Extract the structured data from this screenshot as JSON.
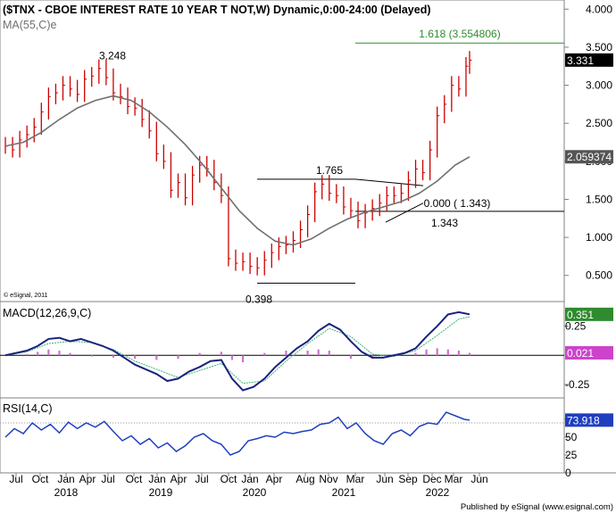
{
  "colors": {
    "price_bar": "#cc0000",
    "ma_line": "#707070",
    "fib_line": "#2e8b2e",
    "macd_line": "#1a237e",
    "signal_line": "#3cb371",
    "histogram": "#d070d0",
    "rsi_line": "#1f3fbf",
    "badge_black": "#000000",
    "badge_gray": "#555555",
    "badge_green": "#2e8b2e",
    "badge_magenta": "#cc44cc",
    "badge_blue": "#1f3fbf"
  },
  "header": {
    "title": "($TNX - CBOE INTEREST RATE 10 YEAR T NOT,W) Dynamic,0:00-24:00 (Delayed)",
    "ma_label": "MA(55,C)e"
  },
  "footer": {
    "copyright": "© eSignal, 2011",
    "published": "Published by eSignal (www.esignal.com)"
  },
  "chart_data": [
    {
      "type": "line",
      "panel": "price",
      "x_ticks": [
        "Jul",
        "Oct",
        "Jan",
        "Apr",
        "Jul",
        "Oct",
        "Jan",
        "Apr",
        "Jul",
        "Oct",
        "Jan",
        "Apr",
        "Aug",
        "Nov",
        "Mar",
        "Jun",
        "Sep",
        "Dec",
        "Mar",
        "Jun"
      ],
      "x_years": [
        "2018",
        "2019",
        "2020",
        "2021",
        "2022"
      ],
      "y_ticks": [
        "4.000",
        "3.500",
        "3.000",
        "2.500",
        "2.000",
        "1.500",
        "1.000",
        "0.500"
      ],
      "ylim": [
        0.18,
        4.05
      ],
      "series": [
        {
          "name": "$TNX",
          "style": "bars",
          "x": [
            0,
            4,
            8,
            12,
            16,
            20,
            24,
            28,
            32,
            36,
            40,
            44,
            48,
            52,
            56,
            60,
            64,
            68,
            72,
            76,
            80,
            84,
            88,
            92,
            96,
            100,
            104,
            108,
            112,
            116,
            120,
            124,
            128,
            132,
            136,
            140,
            144,
            148,
            152,
            156,
            160,
            164,
            168,
            172,
            176,
            180,
            184,
            188,
            192,
            196,
            200,
            204,
            208,
            212,
            216,
            220,
            224,
            228,
            232,
            236,
            240,
            244,
            248,
            252,
            256,
            258
          ],
          "values": [
            2.2,
            2.15,
            2.28,
            2.35,
            2.45,
            2.65,
            2.85,
            2.9,
            3.0,
            2.95,
            2.88,
            3.08,
            3.12,
            3.22,
            3.1,
            2.9,
            2.85,
            2.72,
            2.7,
            2.55,
            2.4,
            2.1,
            2.0,
            1.62,
            1.72,
            1.52,
            1.82,
            1.95,
            1.9,
            1.72,
            1.55,
            0.72,
            0.66,
            0.68,
            0.62,
            0.6,
            0.7,
            0.8,
            0.88,
            0.9,
            0.96,
            1.1,
            1.3,
            1.6,
            1.7,
            1.58,
            1.55,
            1.4,
            1.35,
            1.22,
            1.32,
            1.38,
            1.45,
            1.55,
            1.55,
            1.58,
            1.75,
            1.9,
            1.85,
            2.15,
            2.6,
            2.75,
            3.0,
            2.95,
            3.25,
            3.33
          ]
        },
        {
          "name": "MA(55,C)e",
          "style": "line",
          "x": [
            0,
            10,
            20,
            30,
            40,
            50,
            60,
            70,
            80,
            90,
            100,
            110,
            120,
            130,
            140,
            150,
            160,
            170,
            180,
            190,
            200,
            210,
            220,
            230,
            240,
            250,
            258
          ],
          "values": [
            2.2,
            2.25,
            2.38,
            2.55,
            2.7,
            2.8,
            2.86,
            2.8,
            2.65,
            2.45,
            2.22,
            1.95,
            1.65,
            1.35,
            1.12,
            0.95,
            0.9,
            0.98,
            1.12,
            1.24,
            1.33,
            1.4,
            1.47,
            1.58,
            1.74,
            1.95,
            2.06
          ]
        }
      ],
      "annotations": [
        {
          "text": "3.248",
          "x": 58,
          "y": 3.248
        },
        {
          "text": "1.765",
          "x": 180,
          "y": 1.765
        },
        {
          "text": "0.398",
          "x": 136,
          "y": 0.398
        },
        {
          "text": "1.343",
          "x": 238,
          "y": 1.343
        },
        {
          "text": "0.000 ( 1.343)",
          "x": 232,
          "y": 1.343
        },
        {
          "text": "1.618 (3.554806)",
          "x": 230,
          "y": 3.5548
        }
      ],
      "badges": {
        "last": "3.331",
        "ma": "2.059374"
      }
    },
    {
      "type": "line",
      "panel": "macd",
      "title": "MACD(12,26,9,C)",
      "y_ticks": [
        "0.25",
        "-0.25"
      ],
      "ylim": [
        -0.35,
        0.43
      ],
      "series": [
        {
          "name": "MACD",
          "x": [
            0,
            6,
            12,
            18,
            24,
            30,
            36,
            42,
            48,
            54,
            60,
            66,
            72,
            78,
            84,
            90,
            96,
            102,
            108,
            114,
            120,
            126,
            132,
            138,
            144,
            150,
            156,
            162,
            168,
            174,
            180,
            186,
            192,
            198,
            204,
            210,
            216,
            222,
            228,
            234,
            240,
            246,
            252,
            258
          ],
          "values": [
            0.0,
            0.02,
            0.04,
            0.08,
            0.14,
            0.15,
            0.12,
            0.14,
            0.11,
            0.08,
            0.04,
            -0.02,
            -0.08,
            -0.12,
            -0.16,
            -0.22,
            -0.2,
            -0.14,
            -0.1,
            -0.05,
            -0.04,
            -0.2,
            -0.3,
            -0.27,
            -0.2,
            -0.1,
            -0.02,
            0.06,
            0.12,
            0.21,
            0.27,
            0.22,
            0.12,
            0.03,
            -0.02,
            -0.02,
            0.0,
            0.02,
            0.06,
            0.16,
            0.25,
            0.35,
            0.37,
            0.351
          ]
        },
        {
          "name": "Signal",
          "x": [
            0,
            12,
            24,
            36,
            48,
            60,
            72,
            84,
            96,
            108,
            120,
            132,
            144,
            156,
            168,
            180,
            192,
            204,
            216,
            228,
            240,
            252,
            258
          ],
          "values": [
            0.0,
            0.03,
            0.1,
            0.12,
            0.11,
            0.05,
            -0.05,
            -0.12,
            -0.19,
            -0.13,
            -0.07,
            -0.24,
            -0.22,
            -0.05,
            0.1,
            0.23,
            0.16,
            0.01,
            -0.01,
            0.04,
            0.17,
            0.31,
            0.33
          ]
        },
        {
          "name": "Histogram",
          "style": "bars",
          "x": [
            12,
            18,
            24,
            30,
            36,
            48,
            60,
            72,
            84,
            96,
            108,
            120,
            126,
            132,
            144,
            156,
            168,
            174,
            180,
            192,
            204,
            216,
            228,
            234,
            240,
            246,
            252,
            258
          ],
          "values": [
            0.01,
            0.03,
            0.05,
            0.04,
            0.02,
            -0.01,
            -0.02,
            -0.03,
            -0.04,
            -0.03,
            0.02,
            0.03,
            -0.04,
            -0.06,
            0.02,
            0.04,
            0.04,
            0.05,
            0.04,
            -0.03,
            -0.03,
            0.01,
            0.02,
            0.05,
            0.06,
            0.05,
            0.04,
            0.021
          ]
        }
      ],
      "badges": {
        "macd": "0.351",
        "histogram": "0.021"
      }
    },
    {
      "type": "line",
      "panel": "rsi",
      "title": "RSI(14,C)",
      "y_ticks": [
        "75",
        "50",
        "25",
        "0"
      ],
      "ylim": [
        0,
        100
      ],
      "series": [
        {
          "name": "RSI(14,C)",
          "x": [
            0,
            5,
            10,
            15,
            20,
            25,
            30,
            35,
            40,
            45,
            50,
            55,
            60,
            65,
            70,
            75,
            80,
            85,
            90,
            95,
            100,
            105,
            110,
            115,
            120,
            125,
            130,
            135,
            140,
            145,
            150,
            155,
            160,
            165,
            170,
            175,
            180,
            185,
            190,
            195,
            200,
            205,
            210,
            215,
            220,
            225,
            230,
            235,
            240,
            245,
            250,
            255,
            258
          ],
          "values": [
            50,
            62,
            55,
            70,
            60,
            68,
            56,
            71,
            62,
            70,
            64,
            72,
            58,
            45,
            52,
            40,
            48,
            35,
            42,
            30,
            38,
            50,
            55,
            45,
            40,
            25,
            30,
            45,
            48,
            52,
            50,
            57,
            55,
            58,
            60,
            68,
            70,
            78,
            62,
            70,
            55,
            45,
            40,
            55,
            60,
            52,
            65,
            70,
            68,
            85,
            80,
            75,
            73.918
          ]
        }
      ],
      "badges": {
        "rsi": "73.918"
      }
    }
  ]
}
